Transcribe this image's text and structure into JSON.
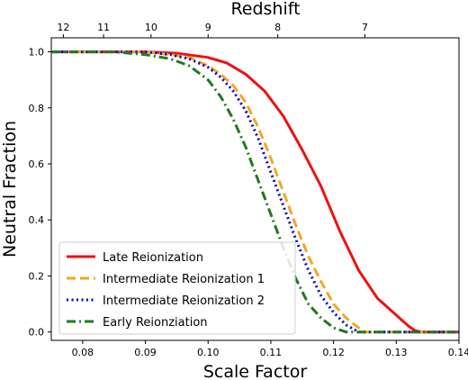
{
  "chart_data": {
    "type": "line",
    "xlabel": "Scale Factor",
    "ylabel": "Neutral Fraction",
    "top_axis_label": "Redshift",
    "xlim": [
      0.075,
      0.14
    ],
    "ylim": [
      -0.03,
      1.05
    ],
    "x_ticks": [
      0.08,
      0.09,
      0.1,
      0.11,
      0.12,
      0.13,
      0.14
    ],
    "x_tick_labels": [
      "0.08",
      "0.09",
      "0.10",
      "0.11",
      "0.12",
      "0.13",
      "0.14"
    ],
    "y_ticks": [
      0.0,
      0.2,
      0.4,
      0.6,
      0.8,
      1.0
    ],
    "y_tick_labels": [
      "0.0",
      "0.2",
      "0.4",
      "0.6",
      "0.8",
      "1.0"
    ],
    "top_ticks": [
      12,
      11,
      10,
      9,
      8,
      7
    ],
    "top_tick_labels": [
      "12",
      "11",
      "10",
      "9",
      "8",
      "7"
    ],
    "grid": false,
    "legend_position": "lower-left",
    "series": [
      {
        "name": "Late Reionization",
        "color": "#ee1111",
        "style": "solid",
        "x": [
          0.075,
          0.09,
          0.095,
          0.1,
          0.103,
          0.106,
          0.109,
          0.112,
          0.115,
          0.118,
          0.121,
          0.124,
          0.127,
          0.13,
          0.132,
          0.133,
          0.134,
          0.14
        ],
        "y": [
          1.0,
          1.0,
          0.995,
          0.98,
          0.96,
          0.92,
          0.86,
          0.77,
          0.65,
          0.52,
          0.36,
          0.22,
          0.12,
          0.06,
          0.02,
          0.005,
          0.0,
          0.0
        ]
      },
      {
        "name": "Intermediate Reionization 1",
        "color": "#f5a623",
        "style": "dashed",
        "x": [
          0.075,
          0.09,
          0.094,
          0.097,
          0.1,
          0.102,
          0.104,
          0.106,
          0.108,
          0.11,
          0.112,
          0.114,
          0.116,
          0.118,
          0.12,
          0.122,
          0.124,
          0.125,
          0.14
        ],
        "y": [
          1.0,
          1.0,
          0.99,
          0.98,
          0.95,
          0.92,
          0.88,
          0.82,
          0.73,
          0.62,
          0.5,
          0.38,
          0.27,
          0.18,
          0.1,
          0.05,
          0.015,
          0.0,
          0.0
        ]
      },
      {
        "name": "Intermediate Reionization 2",
        "color": "#0000cc",
        "style": "dotted",
        "x": [
          0.075,
          0.09,
          0.094,
          0.097,
          0.1,
          0.102,
          0.104,
          0.106,
          0.108,
          0.11,
          0.112,
          0.114,
          0.116,
          0.118,
          0.12,
          0.122,
          0.124,
          0.14
        ],
        "y": [
          1.0,
          1.0,
          0.99,
          0.975,
          0.945,
          0.91,
          0.86,
          0.79,
          0.69,
          0.57,
          0.45,
          0.33,
          0.22,
          0.13,
          0.07,
          0.025,
          0.0,
          0.0
        ]
      },
      {
        "name": "Early Reionziation",
        "color": "#227722",
        "style": "dashdot",
        "x": [
          0.075,
          0.085,
          0.09,
          0.094,
          0.097,
          0.1,
          0.102,
          0.104,
          0.106,
          0.108,
          0.11,
          0.112,
          0.114,
          0.116,
          0.118,
          0.12,
          0.122,
          0.14
        ],
        "y": [
          1.0,
          1.0,
          0.99,
          0.975,
          0.95,
          0.9,
          0.84,
          0.76,
          0.66,
          0.54,
          0.42,
          0.3,
          0.19,
          0.1,
          0.05,
          0.015,
          0.0,
          0.0
        ]
      }
    ]
  }
}
